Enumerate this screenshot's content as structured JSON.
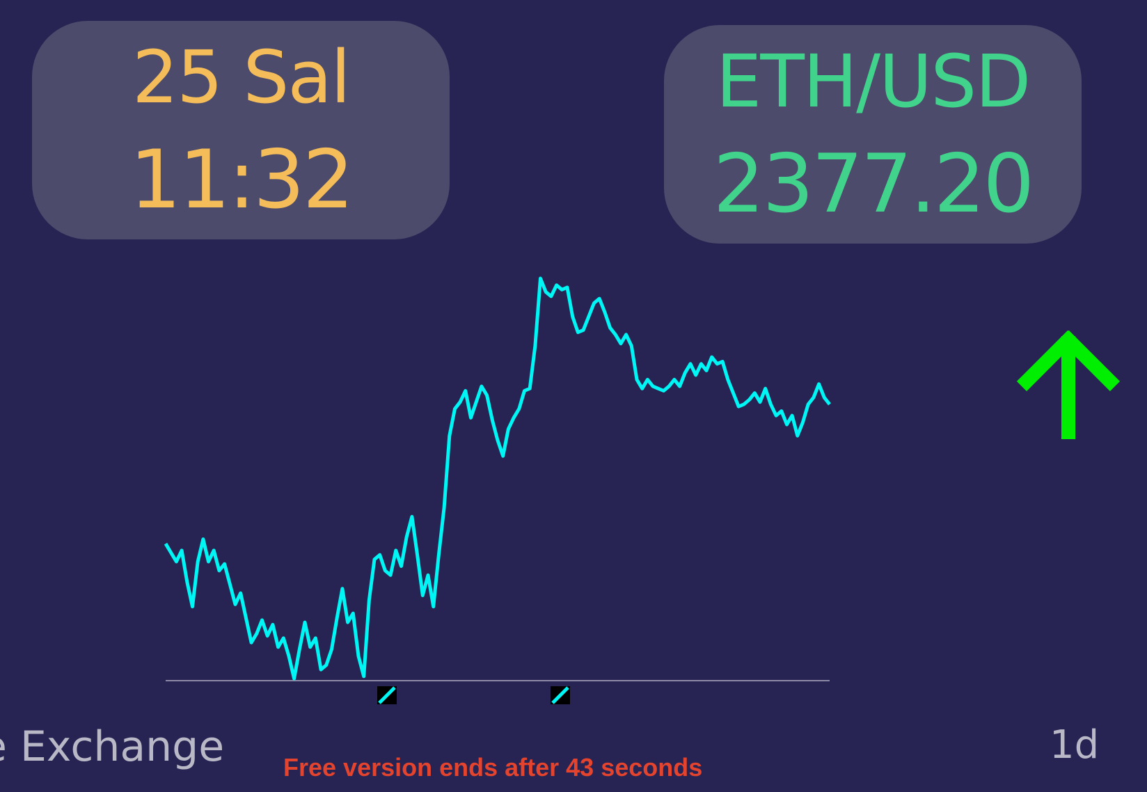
{
  "date_card": {
    "date": "25 Sal",
    "time": "11:32"
  },
  "pair_card": {
    "pair": "ETH/USD",
    "price": "2377.20"
  },
  "trend": {
    "direction": "up",
    "icon": "arrow-up-icon",
    "color": "#00ee00"
  },
  "footer": {
    "exchange": "ce Exchange",
    "free_notice": "Free version ends after 43 seconds",
    "timeframe": "1d"
  },
  "colors": {
    "background": "#272453",
    "card": "#4d4b6b",
    "date_text": "#f4bd5a",
    "pair_text": "#41d38c",
    "line": "#00f5f5",
    "notice": "#e4432d"
  },
  "chart_data": {
    "type": "line",
    "title": "",
    "xlabel": "",
    "ylabel": "",
    "x_markers": 2,
    "series": [
      {
        "values": [
          2330,
          2326,
          2322,
          2327,
          2313,
          2302,
          2322,
          2332,
          2322,
          2327,
          2318,
          2321,
          2312,
          2303,
          2308,
          2297,
          2286,
          2290,
          2296,
          2289,
          2294,
          2284,
          2288,
          2280,
          2270,
          2283,
          2295,
          2284,
          2288,
          2274,
          2276,
          2283,
          2297,
          2310,
          2295,
          2299,
          2280,
          2271,
          2305,
          2323,
          2325,
          2318,
          2316,
          2327,
          2320,
          2333,
          2342,
          2325,
          2307,
          2316,
          2302,
          2325,
          2346,
          2378,
          2390,
          2393,
          2398,
          2386,
          2393,
          2400,
          2396,
          2385,
          2376,
          2369,
          2381,
          2386,
          2390,
          2398,
          2399,
          2418,
          2448,
          2442,
          2440,
          2445,
          2443,
          2444,
          2431,
          2424,
          2425,
          2431,
          2437,
          2439,
          2433,
          2426,
          2423,
          2419,
          2423,
          2418,
          2403,
          2399,
          2403,
          2400,
          2399,
          2398,
          2400,
          2403,
          2400,
          2406,
          2410,
          2405,
          2410,
          2407,
          2413,
          2410,
          2411,
          2403,
          2397,
          2391,
          2392,
          2394,
          2397,
          2393,
          2399,
          2392,
          2387,
          2389,
          2383,
          2387,
          2378,
          2384,
          2392,
          2395,
          2401,
          2395,
          2392
        ]
      }
    ]
  }
}
